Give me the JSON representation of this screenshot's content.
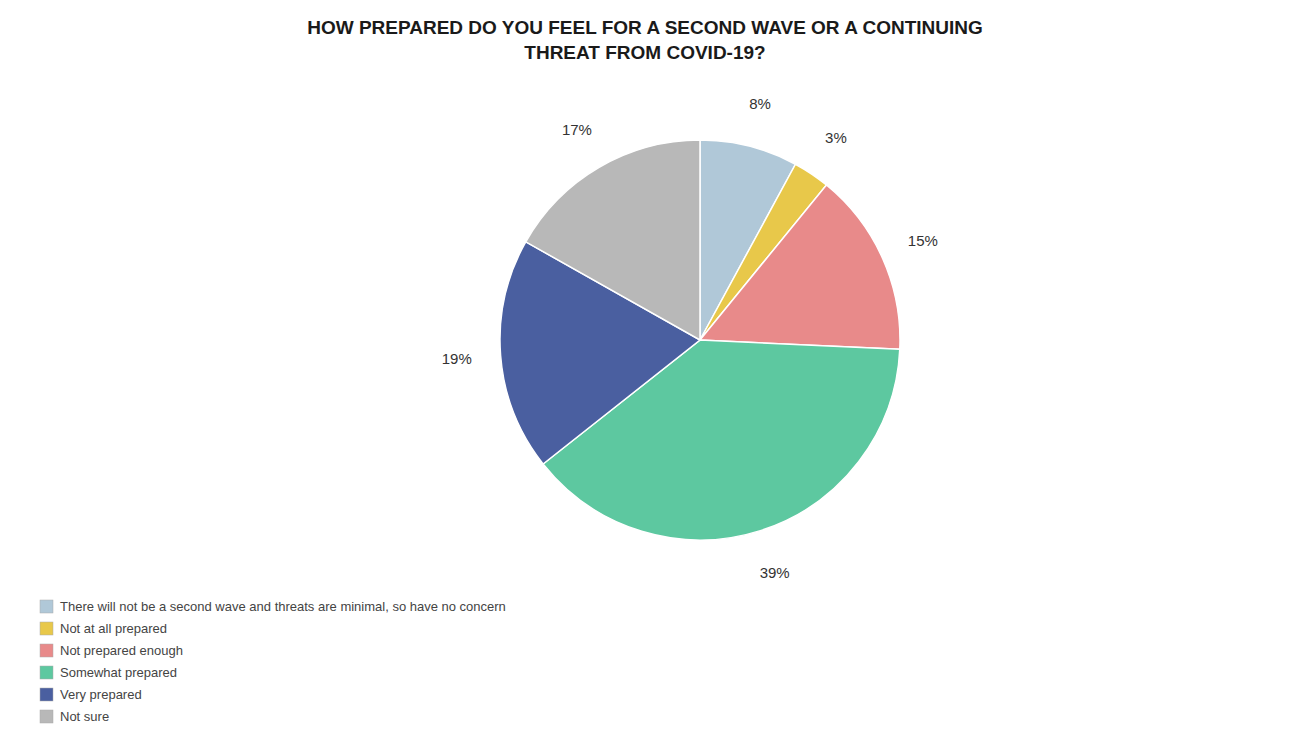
{
  "chart_data": {
    "type": "pie",
    "title": "HOW PREPARED DO YOU FEEL FOR A SECOND WAVE OR A CONTINUING\nTHREAT FROM COVID-19?",
    "categories": [
      "There will not be a second wave and threats are minimal, so have no concern",
      "Not at all prepared",
      "Not prepared enough",
      "Somewhat prepared",
      "Very prepared",
      "Not sure"
    ],
    "values": [
      8,
      3,
      15,
      39,
      19,
      17
    ],
    "value_labels": [
      "8%",
      "3%",
      "15%",
      "39%",
      "19%",
      "17%"
    ],
    "colors": [
      "#b0c8d8",
      "#e8c84a",
      "#e88a8a",
      "#5dc8a0",
      "#4a5fa0",
      "#b8b8b8"
    ],
    "data_labels": true,
    "legend": "lower left"
  }
}
